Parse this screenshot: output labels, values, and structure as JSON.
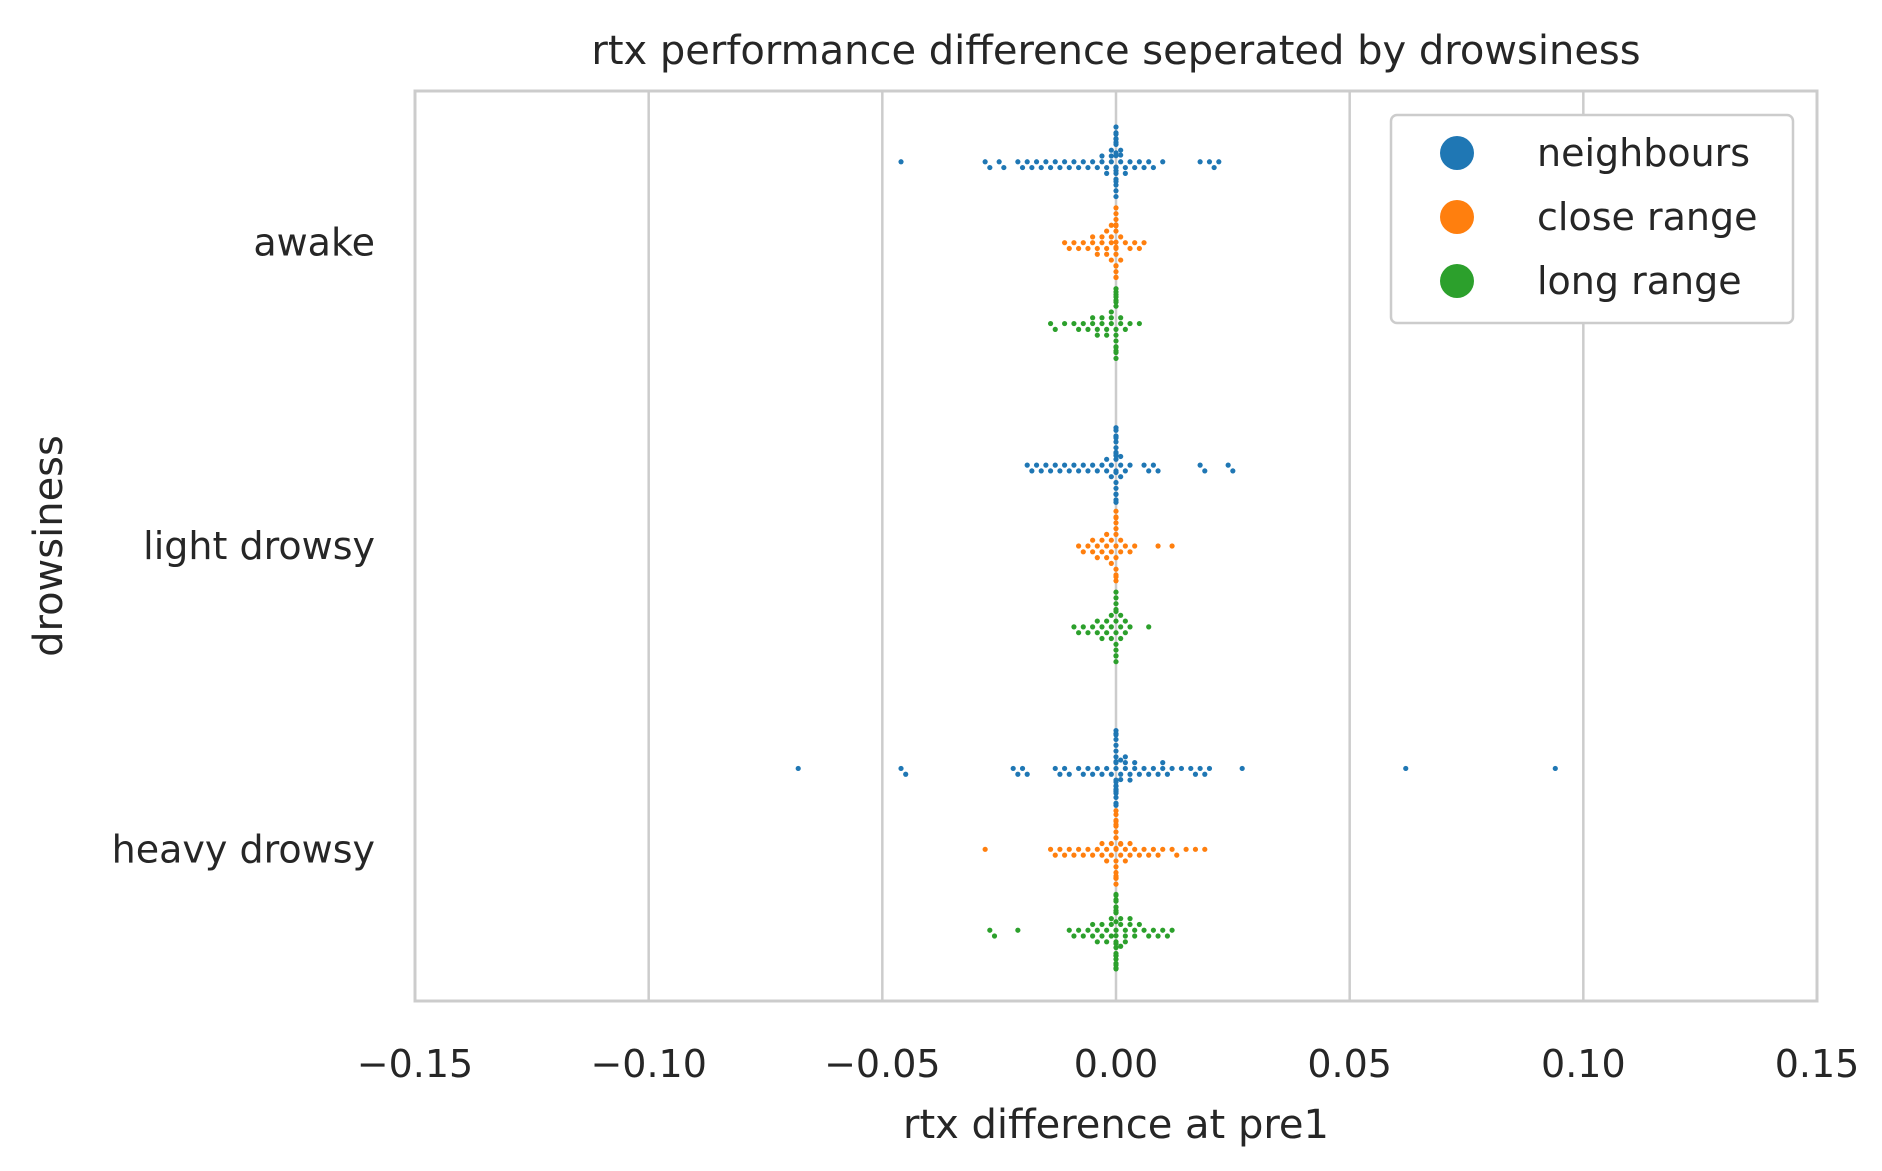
{
  "chart_data": {
    "type": "scatter",
    "subtype": "swarm",
    "title": "rtx performance difference seperated by drowsiness",
    "xlabel": "rtx difference at pre1",
    "ylabel": "drowsiness",
    "xlim": [
      -0.15,
      0.15
    ],
    "xticks": [
      -0.15,
      -0.1,
      -0.05,
      0.0,
      0.05,
      0.1,
      0.15
    ],
    "xtick_labels": [
      "−0.15",
      "−0.10",
      "−0.05",
      "0.00",
      "0.05",
      "0.10",
      "0.15"
    ],
    "categories": [
      "awake",
      "light drowsy",
      "heavy drowsy"
    ],
    "grid": "vertical",
    "legend_position": "top-right",
    "series": [
      {
        "name": "neighbours",
        "color": "#1f77b4",
        "values_by_category": [
          [
            -0.046,
            -0.028,
            -0.027,
            -0.025,
            -0.024,
            -0.021,
            -0.02,
            -0.019,
            -0.018,
            -0.017,
            -0.016,
            -0.015,
            -0.014,
            -0.013,
            -0.012,
            -0.011,
            -0.01,
            -0.009,
            -0.008,
            -0.007,
            -0.006,
            -0.005,
            -0.004,
            -0.003,
            -0.003,
            -0.002,
            -0.002,
            -0.001,
            -0.001,
            -0.001,
            0.0,
            0.0,
            0.0,
            0.0,
            0.0,
            0.0,
            0.0,
            0.0,
            0.0,
            0.0,
            0.0,
            0.0,
            0.0,
            0.0,
            0.0,
            0.0,
            0.0,
            0.0,
            0.001,
            0.001,
            0.001,
            0.002,
            0.002,
            0.003,
            0.004,
            0.005,
            0.006,
            0.007,
            0.008,
            0.01,
            0.018,
            0.02,
            0.021,
            0.022
          ],
          [
            -0.019,
            -0.018,
            -0.017,
            -0.016,
            -0.015,
            -0.014,
            -0.013,
            -0.012,
            -0.011,
            -0.01,
            -0.009,
            -0.008,
            -0.007,
            -0.006,
            -0.005,
            -0.004,
            -0.003,
            -0.002,
            -0.002,
            -0.001,
            -0.001,
            0.0,
            0.0,
            0.0,
            0.0,
            0.0,
            0.0,
            0.0,
            0.0,
            0.0,
            0.0,
            0.0,
            0.0,
            0.0,
            0.0,
            0.0,
            0.0,
            0.0,
            0.0,
            0.0,
            0.0,
            0.001,
            0.001,
            0.001,
            0.002,
            0.003,
            0.006,
            0.007,
            0.008,
            0.009,
            0.018,
            0.019,
            0.024,
            0.025
          ],
          [
            -0.068,
            -0.046,
            -0.045,
            -0.022,
            -0.021,
            -0.02,
            -0.019,
            -0.013,
            -0.012,
            -0.011,
            -0.01,
            -0.008,
            -0.007,
            -0.006,
            -0.005,
            -0.004,
            -0.003,
            -0.002,
            -0.001,
            0.0,
            0.0,
            0.0,
            0.0,
            0.0,
            0.0,
            0.0,
            0.0,
            0.0,
            0.0,
            0.0,
            0.0,
            0.0,
            0.0,
            0.0,
            0.0,
            0.0,
            0.0,
            0.0,
            0.0,
            0.0,
            0.0,
            0.001,
            0.001,
            0.001,
            0.002,
            0.002,
            0.002,
            0.003,
            0.003,
            0.004,
            0.004,
            0.005,
            0.006,
            0.007,
            0.008,
            0.009,
            0.01,
            0.01,
            0.011,
            0.012,
            0.014,
            0.016,
            0.017,
            0.018,
            0.019,
            0.02,
            0.027,
            0.062,
            0.094
          ]
        ]
      },
      {
        "name": "close range",
        "color": "#ff7f0e",
        "values_by_category": [
          [
            -0.011,
            -0.01,
            -0.009,
            -0.008,
            -0.007,
            -0.006,
            -0.005,
            -0.005,
            -0.004,
            -0.004,
            -0.003,
            -0.003,
            -0.002,
            -0.002,
            -0.002,
            -0.001,
            -0.001,
            -0.001,
            -0.001,
            0.0,
            0.0,
            0.0,
            0.0,
            0.0,
            0.0,
            0.0,
            0.0,
            0.0,
            0.0,
            0.0,
            0.0,
            0.0,
            0.0,
            0.0,
            0.001,
            0.001,
            0.002,
            0.003,
            0.004,
            0.005,
            0.006
          ],
          [
            -0.008,
            -0.007,
            -0.006,
            -0.005,
            -0.005,
            -0.004,
            -0.004,
            -0.003,
            -0.003,
            -0.002,
            -0.002,
            -0.002,
            -0.001,
            -0.001,
            -0.001,
            0.0,
            0.0,
            0.0,
            0.0,
            0.0,
            0.0,
            0.0,
            0.0,
            0.0,
            0.0,
            0.0,
            0.0,
            0.001,
            0.001,
            0.002,
            0.003,
            0.004,
            0.009,
            0.012
          ],
          [
            -0.028,
            -0.014,
            -0.013,
            -0.012,
            -0.011,
            -0.01,
            -0.009,
            -0.008,
            -0.007,
            -0.006,
            -0.005,
            -0.004,
            -0.003,
            -0.003,
            -0.002,
            -0.002,
            -0.001,
            -0.001,
            0.0,
            0.0,
            0.0,
            0.0,
            0.0,
            0.0,
            0.0,
            0.0,
            0.0,
            0.0,
            0.0,
            0.0,
            0.0,
            0.0,
            0.0,
            0.0,
            0.0,
            0.0,
            0.001,
            0.001,
            0.001,
            0.002,
            0.002,
            0.003,
            0.003,
            0.004,
            0.005,
            0.006,
            0.007,
            0.008,
            0.009,
            0.01,
            0.012,
            0.013,
            0.015,
            0.017,
            0.019
          ]
        ]
      },
      {
        "name": "long range",
        "color": "#2ca02c",
        "values_by_category": [
          [
            -0.014,
            -0.013,
            -0.011,
            -0.009,
            -0.008,
            -0.007,
            -0.006,
            -0.005,
            -0.005,
            -0.004,
            -0.004,
            -0.003,
            -0.003,
            -0.002,
            -0.002,
            -0.001,
            -0.001,
            -0.001,
            0.0,
            0.0,
            0.0,
            0.0,
            0.0,
            0.0,
            0.0,
            0.0,
            0.0,
            0.0,
            0.0,
            0.0,
            0.0,
            0.0,
            0.0,
            0.001,
            0.001,
            0.002,
            0.003,
            0.005
          ],
          [
            -0.009,
            -0.008,
            -0.007,
            -0.006,
            -0.005,
            -0.004,
            -0.004,
            -0.003,
            -0.003,
            -0.002,
            -0.002,
            -0.001,
            -0.001,
            -0.001,
            0.0,
            0.0,
            0.0,
            0.0,
            0.0,
            0.0,
            0.0,
            0.0,
            0.0,
            0.0,
            0.0,
            0.0,
            0.001,
            0.001,
            0.001,
            0.002,
            0.002,
            0.003,
            0.007
          ],
          [
            -0.027,
            -0.026,
            -0.021,
            -0.01,
            -0.009,
            -0.008,
            -0.007,
            -0.006,
            -0.005,
            -0.005,
            -0.004,
            -0.004,
            -0.003,
            -0.003,
            -0.002,
            -0.002,
            -0.001,
            -0.001,
            -0.001,
            0.0,
            0.0,
            0.0,
            0.0,
            0.0,
            0.0,
            0.0,
            0.0,
            0.0,
            0.0,
            0.0,
            0.0,
            0.0,
            0.0,
            0.0,
            0.0,
            0.0,
            0.0,
            0.0,
            0.0,
            0.0,
            0.0,
            0.0,
            0.001,
            0.001,
            0.001,
            0.002,
            0.002,
            0.002,
            0.003,
            0.003,
            0.004,
            0.004,
            0.005,
            0.006,
            0.007,
            0.008,
            0.009,
            0.01,
            0.011,
            0.012
          ]
        ]
      }
    ]
  }
}
